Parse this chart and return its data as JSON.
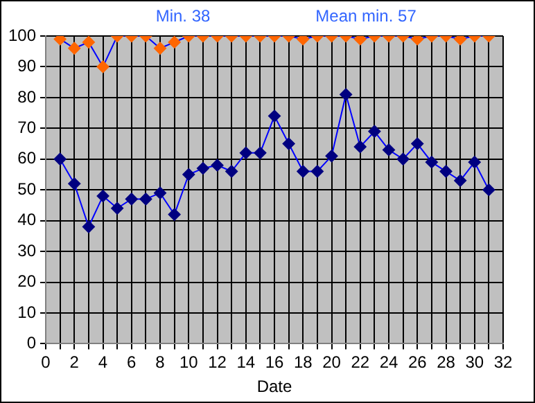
{
  "chart_data": {
    "type": "line",
    "xlabel": "Date",
    "annotations": [
      "Min. 38",
      "Mean min. 57"
    ],
    "x": [
      1,
      2,
      3,
      4,
      5,
      6,
      7,
      8,
      9,
      10,
      11,
      12,
      13,
      14,
      15,
      16,
      17,
      18,
      19,
      20,
      21,
      22,
      23,
      24,
      25,
      26,
      27,
      28,
      29,
      30,
      31
    ],
    "series": [
      {
        "color": "#ff6600",
        "values": [
          99,
          96,
          98,
          90,
          100,
          100,
          100,
          96,
          98,
          100,
          100,
          100,
          100,
          100,
          100,
          100,
          100,
          99,
          100,
          100,
          100,
          99,
          100,
          100,
          100,
          99,
          100,
          100,
          99,
          100,
          100
        ]
      },
      {
        "color": "#000080",
        "values": [
          60,
          52,
          38,
          48,
          44,
          47,
          47,
          49,
          42,
          55,
          57,
          58,
          56,
          62,
          62,
          74,
          65,
          56,
          56,
          61,
          81,
          64,
          69,
          63,
          60,
          65,
          59,
          56,
          53,
          59,
          50
        ]
      }
    ],
    "xlim": [
      0,
      32
    ],
    "xticks": [
      0,
      {
        "value": 1,
        "label": null
      },
      2,
      {
        "value": 3,
        "label": null
      },
      4,
      {
        "value": 5,
        "label": null
      },
      6,
      {
        "value": 7,
        "label": null
      },
      8,
      {
        "value": 9,
        "label": null
      },
      10,
      {
        "value": 11,
        "label": null
      },
      12,
      {
        "value": 13,
        "label": null
      },
      14,
      {
        "value": 15,
        "label": null
      },
      16,
      {
        "value": 17,
        "label": null
      },
      18,
      {
        "value": 19,
        "label": null
      },
      20,
      {
        "value": 21,
        "label": null
      },
      22,
      {
        "value": 23,
        "label": null
      },
      24,
      {
        "value": 25,
        "label": null
      },
      26,
      {
        "value": 27,
        "label": null
      },
      28,
      {
        "value": 29,
        "label": null
      },
      30,
      {
        "value": 31,
        "label": null
      },
      32
    ],
    "ylim": [
      0,
      100
    ],
    "yticks": [
      0,
      10,
      20,
      30,
      40,
      50,
      60,
      70,
      80,
      90,
      100
    ],
    "grid": true,
    "legend": false,
    "marker": "diamond",
    "line_style": "solid"
  }
}
